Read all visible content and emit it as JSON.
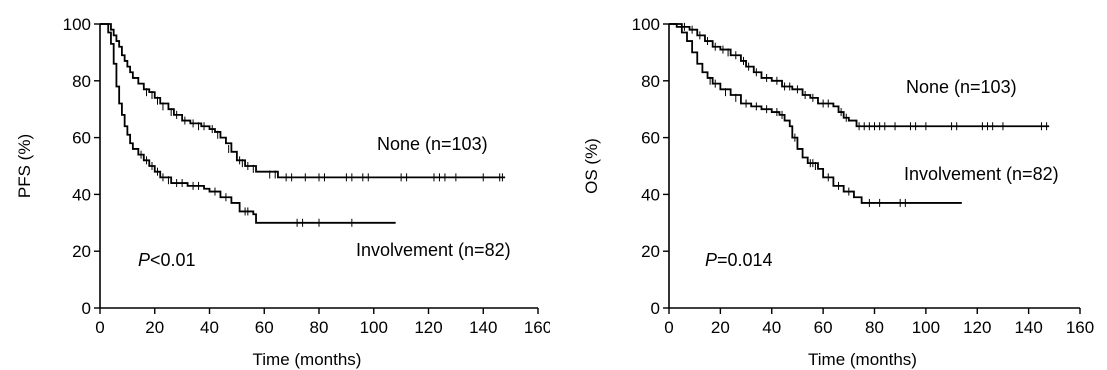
{
  "chart_data": [
    {
      "type": "line",
      "ylabel": "PFS (%)",
      "xlabel": "Time (months)",
      "xlim": [
        0,
        160
      ],
      "ylim": [
        0,
        100
      ],
      "xticks": [
        0,
        20,
        40,
        60,
        80,
        100,
        120,
        140,
        160
      ],
      "yticks": [
        0,
        20,
        40,
        60,
        80,
        100
      ],
      "grid": false,
      "series": [
        {
          "name": "None (n=103)",
          "color": "#000000",
          "steps": [
            [
              0,
              100
            ],
            [
              3,
              100
            ],
            [
              4,
              98
            ],
            [
              5,
              96
            ],
            [
              6,
              94
            ],
            [
              7,
              92
            ],
            [
              8,
              89
            ],
            [
              9,
              87
            ],
            [
              10,
              85
            ],
            [
              11,
              83
            ],
            [
              12,
              81
            ],
            [
              14,
              79
            ],
            [
              16,
              77
            ],
            [
              18,
              76
            ],
            [
              20,
              74
            ],
            [
              22,
              72
            ],
            [
              25,
              70
            ],
            [
              27,
              68
            ],
            [
              30,
              66
            ],
            [
              33,
              65
            ],
            [
              37,
              64
            ],
            [
              40,
              63
            ],
            [
              42,
              62
            ],
            [
              44,
              60
            ],
            [
              46,
              58
            ],
            [
              48,
              55
            ],
            [
              50,
              52
            ],
            [
              53,
              50
            ],
            [
              57,
              48
            ],
            [
              65,
              46
            ],
            [
              148,
              46
            ]
          ],
          "censored": [
            [
              17,
              76
            ],
            [
              19,
              75
            ],
            [
              21,
              73
            ],
            [
              23,
              71
            ],
            [
              26,
              69
            ],
            [
              28,
              68
            ],
            [
              31,
              66
            ],
            [
              34,
              65
            ],
            [
              36,
              64
            ],
            [
              38,
              64
            ],
            [
              41,
              63
            ],
            [
              43,
              61
            ],
            [
              47,
              56
            ],
            [
              51,
              52
            ],
            [
              52,
              51
            ],
            [
              54,
              50
            ],
            [
              56,
              49
            ],
            [
              62,
              47
            ],
            [
              64,
              47
            ],
            [
              68,
              46
            ],
            [
              70,
              46
            ],
            [
              75,
              46
            ],
            [
              80,
              46
            ],
            [
              82,
              46
            ],
            [
              90,
              46
            ],
            [
              92,
              46
            ],
            [
              96,
              46
            ],
            [
              98,
              46
            ],
            [
              110,
              46
            ],
            [
              112,
              46
            ],
            [
              122,
              46
            ],
            [
              124,
              46
            ],
            [
              126,
              46
            ],
            [
              130,
              46
            ],
            [
              140,
              46
            ],
            [
              146,
              46
            ],
            [
              147,
              46
            ]
          ]
        },
        {
          "name": "Involvement (n=82)",
          "color": "#000000",
          "steps": [
            [
              0,
              100
            ],
            [
              2,
              100
            ],
            [
              3,
              97
            ],
            [
              4,
              93
            ],
            [
              5,
              86
            ],
            [
              6,
              78
            ],
            [
              7,
              72
            ],
            [
              8,
              68
            ],
            [
              9,
              64
            ],
            [
              10,
              61
            ],
            [
              11,
              58
            ],
            [
              12,
              56
            ],
            [
              14,
              54
            ],
            [
              16,
              52
            ],
            [
              18,
              50
            ],
            [
              20,
              48
            ],
            [
              22,
              46
            ],
            [
              26,
              44
            ],
            [
              32,
              43
            ],
            [
              38,
              42
            ],
            [
              40,
              41
            ],
            [
              44,
              39
            ],
            [
              48,
              37
            ],
            [
              51,
              34
            ],
            [
              56,
              33
            ],
            [
              57,
              30
            ],
            [
              108,
              30
            ]
          ],
          "censored": [
            [
              15,
              54
            ],
            [
              17,
              52
            ],
            [
              19,
              50
            ],
            [
              21,
              48
            ],
            [
              23,
              46
            ],
            [
              25,
              45
            ],
            [
              28,
              44
            ],
            [
              30,
              44
            ],
            [
              34,
              43
            ],
            [
              36,
              43
            ],
            [
              42,
              41
            ],
            [
              46,
              39
            ],
            [
              53,
              34
            ],
            [
              54,
              34
            ],
            [
              72,
              30
            ],
            [
              74,
              30
            ],
            [
              80,
              30
            ],
            [
              92,
              30
            ]
          ]
        }
      ],
      "annotations": [
        {
          "italic": "P",
          "text": "<0.01"
        }
      ]
    },
    {
      "type": "line",
      "ylabel": "OS (%)",
      "xlabel": "Time (months)",
      "xlim": [
        0,
        160
      ],
      "ylim": [
        0,
        100
      ],
      "xticks": [
        0,
        20,
        40,
        60,
        80,
        100,
        120,
        140,
        160
      ],
      "yticks": [
        0,
        20,
        40,
        60,
        80,
        100
      ],
      "grid": false,
      "series": [
        {
          "name": "None (n=103)",
          "color": "#000000",
          "steps": [
            [
              0,
              100
            ],
            [
              5,
              99
            ],
            [
              8,
              98
            ],
            [
              11,
              96
            ],
            [
              14,
              94
            ],
            [
              17,
              92
            ],
            [
              20,
              91
            ],
            [
              24,
              89
            ],
            [
              28,
              87
            ],
            [
              30,
              85
            ],
            [
              33,
              83
            ],
            [
              36,
              81
            ],
            [
              40,
              80
            ],
            [
              44,
              78
            ],
            [
              48,
              77
            ],
            [
              52,
              75
            ],
            [
              55,
              74
            ],
            [
              58,
              72
            ],
            [
              64,
              71
            ],
            [
              66,
              69
            ],
            [
              68,
              67
            ],
            [
              70,
              66
            ],
            [
              73,
              64
            ],
            [
              148,
              64
            ]
          ],
          "censored": [
            [
              6,
              99
            ],
            [
              9,
              98
            ],
            [
              12,
              96
            ],
            [
              15,
              94
            ],
            [
              18,
              92
            ],
            [
              21,
              91
            ],
            [
              23,
              90
            ],
            [
              26,
              89
            ],
            [
              29,
              87
            ],
            [
              31,
              85
            ],
            [
              34,
              83
            ],
            [
              38,
              81
            ],
            [
              42,
              80
            ],
            [
              45,
              78
            ],
            [
              47,
              78
            ],
            [
              50,
              77
            ],
            [
              53,
              75
            ],
            [
              56,
              74
            ],
            [
              60,
              72
            ],
            [
              62,
              72
            ],
            [
              67,
              69
            ],
            [
              69,
              67
            ],
            [
              74,
              64
            ],
            [
              76,
              64
            ],
            [
              78,
              64
            ],
            [
              80,
              64
            ],
            [
              82,
              64
            ],
            [
              84,
              64
            ],
            [
              88,
              64
            ],
            [
              94,
              64
            ],
            [
              96,
              64
            ],
            [
              100,
              64
            ],
            [
              110,
              64
            ],
            [
              112,
              64
            ],
            [
              122,
              64
            ],
            [
              124,
              64
            ],
            [
              126,
              64
            ],
            [
              130,
              64
            ],
            [
              145,
              64
            ],
            [
              147,
              64
            ]
          ]
        },
        {
          "name": "Involvement (n=82)",
          "color": "#000000",
          "steps": [
            [
              0,
              100
            ],
            [
              3,
              99
            ],
            [
              5,
              97
            ],
            [
              7,
              94
            ],
            [
              9,
              90
            ],
            [
              11,
              86
            ],
            [
              13,
              83
            ],
            [
              15,
              81
            ],
            [
              17,
              79
            ],
            [
              20,
              77
            ],
            [
              24,
              75
            ],
            [
              28,
              72
            ],
            [
              32,
              71
            ],
            [
              36,
              70
            ],
            [
              40,
              69
            ],
            [
              43,
              68
            ],
            [
              45,
              66
            ],
            [
              47,
              64
            ],
            [
              48,
              60
            ],
            [
              50,
              56
            ],
            [
              52,
              53
            ],
            [
              54,
              51
            ],
            [
              58,
              49
            ],
            [
              60,
              46
            ],
            [
              64,
              43
            ],
            [
              68,
              41
            ],
            [
              72,
              39
            ],
            [
              75,
              37
            ],
            [
              114,
              37
            ]
          ],
          "censored": [
            [
              16,
              80
            ],
            [
              18,
              79
            ],
            [
              22,
              76
            ],
            [
              26,
              74
            ],
            [
              30,
              72
            ],
            [
              34,
              71
            ],
            [
              38,
              70
            ],
            [
              42,
              69
            ],
            [
              44,
              68
            ],
            [
              49,
              60
            ],
            [
              55,
              51
            ],
            [
              56,
              51
            ],
            [
              57,
              50
            ],
            [
              62,
              46
            ],
            [
              66,
              43
            ],
            [
              70,
              41
            ],
            [
              78,
              37
            ],
            [
              82,
              37
            ],
            [
              90,
              37
            ],
            [
              92,
              37
            ]
          ]
        }
      ],
      "annotations": [
        {
          "italic": "P",
          "text": "=0.014"
        }
      ]
    }
  ]
}
